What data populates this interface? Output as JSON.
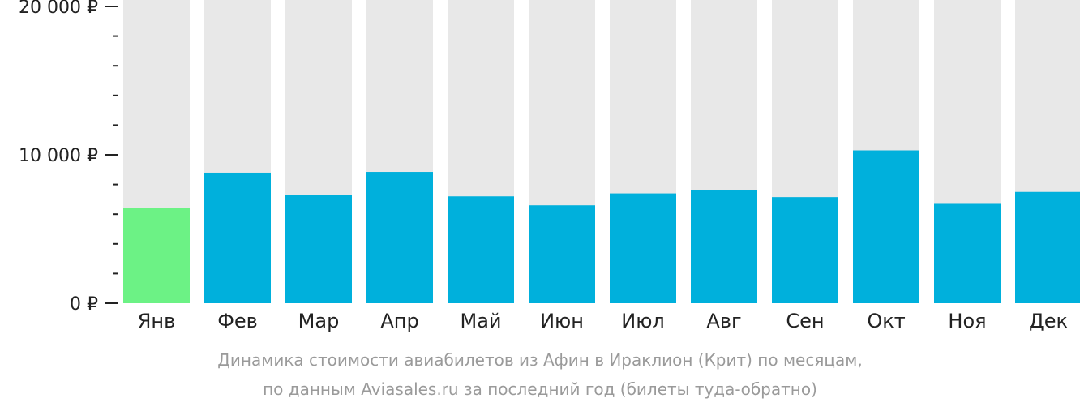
{
  "chart_data": {
    "type": "bar",
    "categories": [
      "Янв",
      "Фев",
      "Мар",
      "Апр",
      "Май",
      "Июн",
      "Июл",
      "Авг",
      "Сен",
      "Окт",
      "Ноя",
      "Дек"
    ],
    "values": [
      6400,
      8800,
      7300,
      8850,
      7200,
      6600,
      7400,
      7650,
      7150,
      10300,
      6750,
      7500
    ],
    "ylim": [
      0,
      20000
    ],
    "yticks": [
      {
        "value": 0,
        "label": "0 ₽"
      },
      {
        "value": 10000,
        "label": "10 000 ₽"
      },
      {
        "value": 20000,
        "label": "20 000 ₽"
      }
    ],
    "minor_tick_step": 2000,
    "highlight_index": 0,
    "grid": false,
    "colors": {
      "bar": "#00b0dc",
      "highlight": "#6cf285",
      "background_bar": "#e8e8e8",
      "axis": "#222222"
    }
  },
  "caption": {
    "line1": "Динамика стоимости авиабилетов из Афин в Ираклион (Крит) по месяцам,",
    "line2": "по данным Aviasales.ru за последний год (билеты туда-обратно)"
  }
}
